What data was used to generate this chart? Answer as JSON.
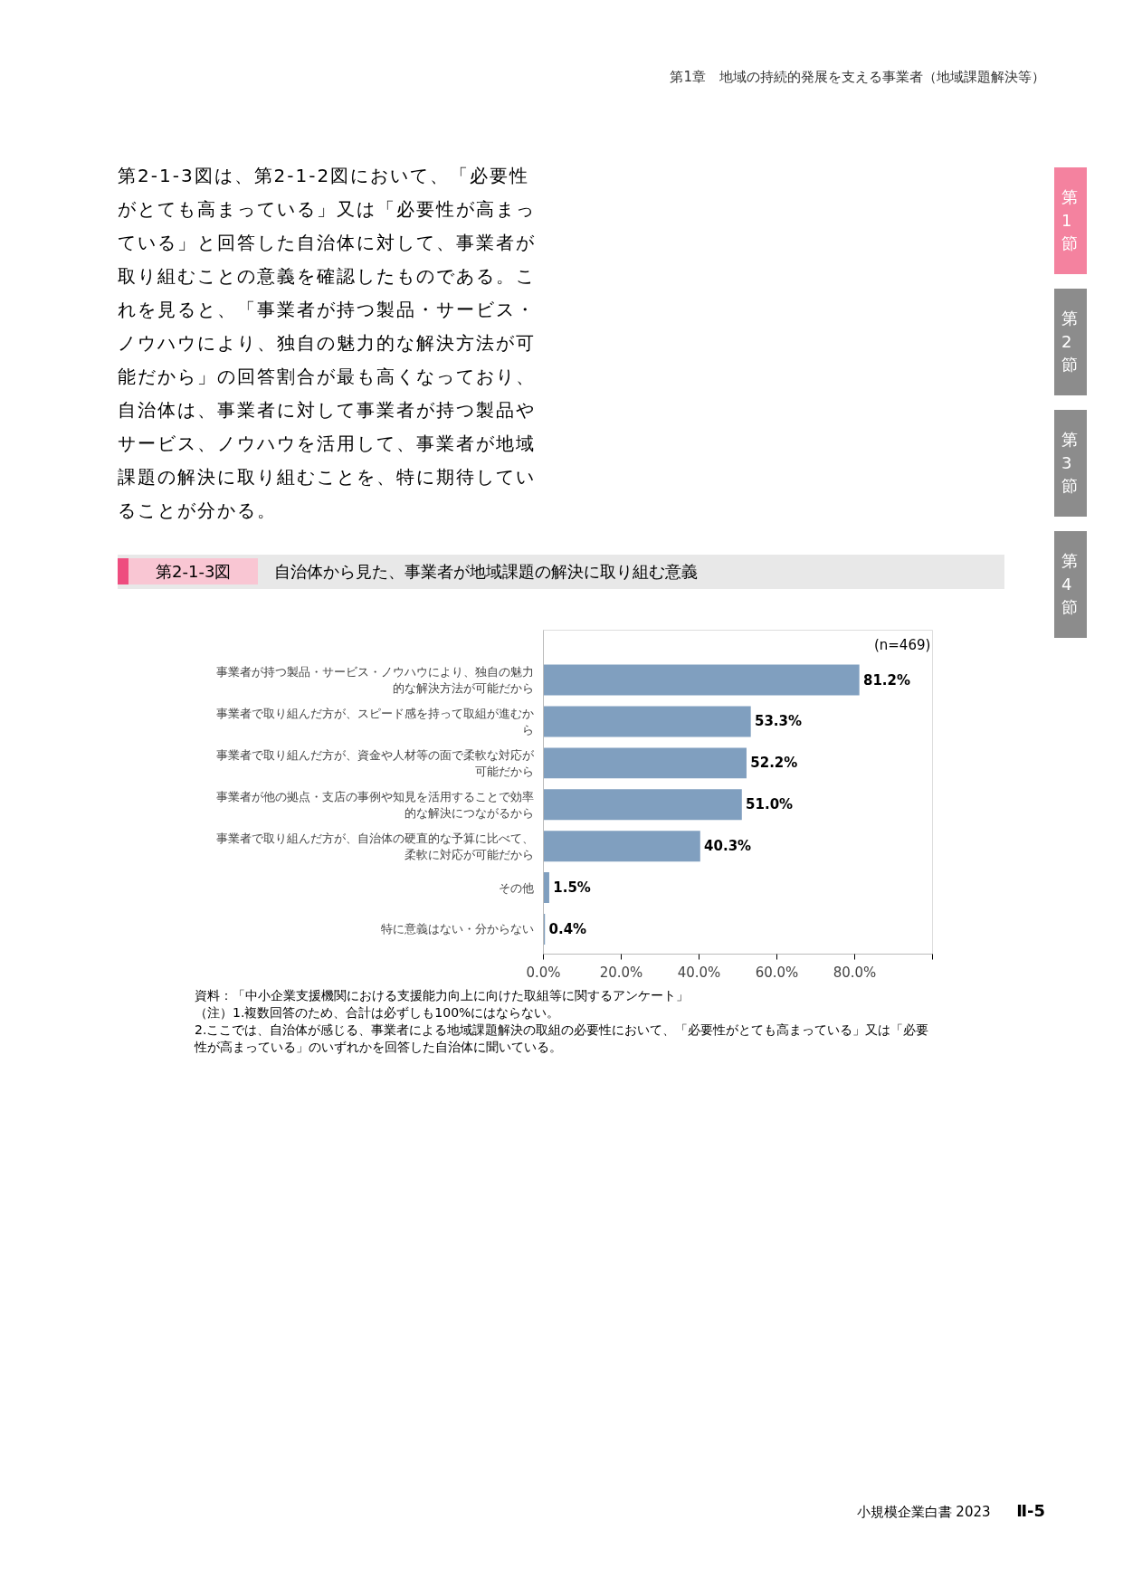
{
  "chart_data": {
    "type": "bar",
    "orientation": "horizontal",
    "title": "自治体から見た、事業者が地域課題の解決に取り組む意義",
    "categories": [
      "事業者が持つ製品・サービス・ノウハウにより、独自の魅力的な解決方法が可能だから",
      "事業者で取り組んだ方が、スピード感を持って取組が進むから",
      "事業者で取り組んだ方が、資金や人材等の面で柔軟な対応が可能だから",
      "事業者が他の拠点・支店の事例や知見を活用することで効率的な解決につながるから",
      "事業者で取り組んだ方が、自治体の硬直的な予算に比べて、柔軟に対応が可能だから",
      "その他",
      "特に意義はない・分からない"
    ],
    "values": [
      81.2,
      53.3,
      52.2,
      51.0,
      40.3,
      1.5,
      0.4
    ],
    "value_labels": [
      "81.2%",
      "53.3%",
      "52.2%",
      "51.0%",
      "40.3%",
      "1.5%",
      "0.4%"
    ],
    "color": "#809fbf",
    "xlim": [
      0,
      100
    ],
    "xticks": [
      {
        "value": 0,
        "label": "0.0%"
      },
      {
        "value": 20,
        "label": "20.0%"
      },
      {
        "value": 40,
        "label": "40.0%"
      },
      {
        "value": 60,
        "label": "60.0%"
      },
      {
        "value": 80,
        "label": "80.0%"
      },
      {
        "value": 100,
        "label": null
      }
    ],
    "grid": false,
    "annotations": [
      "第1章　地域の持続的発展を支える事業者（地域課題解決等）",
      "第2-1-3図は、第2-1-2図において、「必要性がとても高まっている」又は「必要性が高まっている」と回答した自治体に対して、事業者が取り組むことの意義を確認したものである。これを見ると、「事業者が持つ製品・サービス・ノウハウにより、独自の魅力的な解決方法が可能だから」の回答割合が最も高くなっており、自治体は、事業者に対して事業者が持つ製品やサービス、ノウハウを活用して、事業者が地域課題の解決に取り組むことを、特に期待していることが分かる。",
      "第2-1-3図",
      "(n=469)",
      "資料：「中小企業支援機関における支援能力向上に向けた取組等に関するアンケート」",
      "（注）1.複数回答のため、合計は必ずしも100%にはならない。",
      "2.ここでは、自治体が感じる、事業者による地域課題解決の取組の必要性において、「必要性がとても高まっている」又は「必要性が高まっている」のいずれかを回答した自治体に聞いている。",
      "小規模企業白書 2023",
      "Ⅱ-5",
      "第1節",
      "第2節",
      "第3節",
      "第4節"
    ]
  }
}
